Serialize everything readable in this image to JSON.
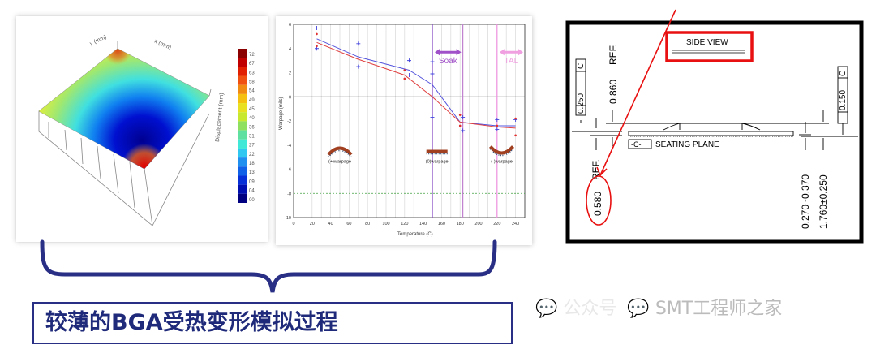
{
  "surface_plot": {
    "axis_x": "x (mm)",
    "axis_y": "y (mm)",
    "axis_z": "Displacement (mm)",
    "colorbar_ticks": [
      "72",
      "67",
      "63",
      "58",
      "54",
      "49",
      "45",
      "40",
      "36",
      "31",
      "27",
      "22",
      "18",
      "13",
      "09",
      "04",
      "00"
    ],
    "colorbar_colors": [
      "#8b0000",
      "#c00000",
      "#e02000",
      "#f05010",
      "#f08a10",
      "#f5c010",
      "#e8e020",
      "#c8e830",
      "#90e060",
      "#60e0a0",
      "#40e8d8",
      "#30c8f0",
      "#2090f0",
      "#1060e8",
      "#0830d8",
      "#0010b0",
      "#000080"
    ]
  },
  "chart_data": {
    "type": "line",
    "xlabel": "Temperature (C)",
    "ylabel": "Warpage (mils)",
    "xlim": [
      0,
      250
    ],
    "ylim": [
      -10,
      6
    ],
    "xticks": [
      0,
      20,
      40,
      60,
      80,
      100,
      120,
      140,
      160,
      180,
      200,
      220,
      240
    ],
    "yticks": [
      -10,
      -8,
      -6,
      -4,
      -2,
      0,
      2,
      4,
      6
    ],
    "series": [
      {
        "color": "#5555dd",
        "x": [
          25,
          70,
          125,
          150,
          180,
          220,
          240
        ],
        "y": [
          4.8,
          3.3,
          2.2,
          1.0,
          -2.1,
          -2.4,
          -2.4
        ]
      },
      {
        "color": "#e04040",
        "x": [
          25,
          70,
          120,
          150,
          180,
          220,
          240
        ],
        "y": [
          4.5,
          3.1,
          1.8,
          0.0,
          -2.1,
          -2.5,
          -2.6
        ]
      }
    ],
    "scatter_blue": [
      [
        25,
        5.7
      ],
      [
        25,
        4.0
      ],
      [
        70,
        4.4
      ],
      [
        70,
        2.5
      ],
      [
        125,
        3.0
      ],
      [
        125,
        1.8
      ],
      [
        150,
        2.9
      ],
      [
        150,
        1.9
      ],
      [
        150,
        -1.7
      ],
      [
        183,
        -1.7
      ],
      [
        183,
        -2.8
      ],
      [
        220,
        -1.9
      ],
      [
        220,
        -2.7
      ],
      [
        240,
        -1.9
      ]
    ],
    "scatter_red": [
      [
        25,
        5.2
      ],
      [
        25,
        4.2
      ],
      [
        120,
        2.2
      ],
      [
        120,
        1.5
      ],
      [
        180,
        -1.5
      ],
      [
        180,
        -2.4
      ],
      [
        220,
        -2.4
      ],
      [
        240,
        -1.8
      ],
      [
        240,
        -3.2
      ]
    ],
    "vlines": [
      {
        "x": 150,
        "color": "#8040c0"
      },
      {
        "x": 183,
        "color": "#c080d0"
      },
      {
        "x": 220,
        "color": "#f090e0"
      }
    ],
    "hline_dashed": {
      "y": -8,
      "color": "#40a040"
    },
    "regions": [
      {
        "label": "Soak",
        "x0": 150,
        "x1": 183,
        "y": 3.7,
        "color": "#a050c8"
      },
      {
        "label": "TAL",
        "x0": 220,
        "x1": 250,
        "y": 3.7,
        "color": "#f0a0e0"
      }
    ],
    "annotations": [
      {
        "label": "(+)warpage",
        "x": 50,
        "y": -6
      },
      {
        "label": "(0)warpage",
        "x": 155,
        "y": -6
      },
      {
        "label": "(-)warpage",
        "x": 225,
        "y": -6
      }
    ]
  },
  "drawing": {
    "title": "SIDE VIEW",
    "flatness": "0.250",
    "datum": "C",
    "dim_860": "0.860",
    "ref": "REF.",
    "dim_580": "0.580",
    "datum_box": "-C-",
    "seating_plane": "SEATING PLANE",
    "coplanarity": "0.150",
    "dim_ball": "0.270~0.370",
    "dim_height": "1.760±0.250",
    "highlight_color": "#e81010"
  },
  "caption": "较薄的BGA受热变形模拟过程",
  "watermark": {
    "prefix": "公众号",
    "name": "SMT工程师之家"
  }
}
